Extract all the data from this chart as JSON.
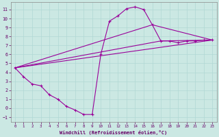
{
  "bg_color": "#cbe8e3",
  "line_color": "#990099",
  "grid_color": "#b0d8d4",
  "xlabel": "Windchill (Refroidissement éolien,°C)",
  "xlim": [
    -0.5,
    23.5
  ],
  "ylim": [
    -1.5,
    11.8
  ],
  "xticks": [
    0,
    1,
    2,
    3,
    4,
    5,
    6,
    7,
    8,
    9,
    10,
    11,
    12,
    13,
    14,
    15,
    16,
    17,
    18,
    19,
    20,
    21,
    22,
    23
  ],
  "yticks": [
    -1,
    0,
    1,
    2,
    3,
    4,
    5,
    6,
    7,
    8,
    9,
    10,
    11
  ],
  "main_x": [
    0,
    1,
    2,
    3,
    4,
    5,
    6,
    7,
    8,
    9,
    10,
    11,
    12,
    13,
    14,
    15,
    16,
    17,
    18,
    19,
    20,
    21,
    22,
    23
  ],
  "main_y": [
    4.5,
    3.5,
    2.7,
    2.5,
    1.5,
    1.0,
    0.2,
    -0.2,
    -0.7,
    -0.7,
    6.0,
    9.7,
    10.3,
    11.1,
    11.3,
    11.0,
    9.3,
    7.5,
    7.5,
    7.3,
    7.5,
    7.5,
    7.6,
    7.6
  ],
  "line2_x": [
    0,
    23
  ],
  "line2_y": [
    4.5,
    7.6
  ],
  "line3_x": [
    0,
    17,
    23
  ],
  "line3_y": [
    4.5,
    7.5,
    7.6
  ],
  "line4_x": [
    0,
    16,
    23
  ],
  "line4_y": [
    4.5,
    9.3,
    7.6
  ]
}
